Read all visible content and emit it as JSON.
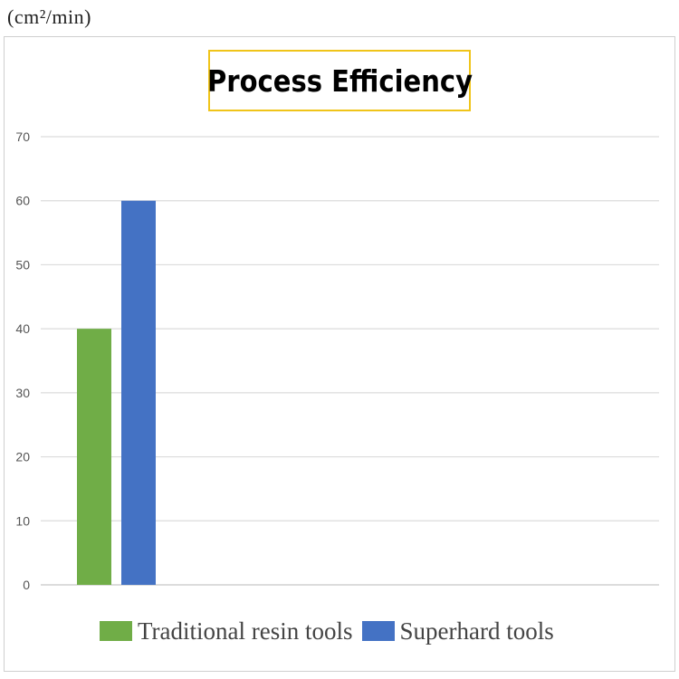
{
  "unit_label": "(cm²/min)",
  "chart_data": {
    "type": "bar",
    "title": "Process Efficiency",
    "xlabel": "",
    "ylabel": "(cm²/min)",
    "ylim": [
      0,
      70
    ],
    "yticks": [
      0,
      10,
      20,
      30,
      40,
      50,
      60,
      70
    ],
    "categories": [
      ""
    ],
    "series": [
      {
        "name": "Traditional resin tools",
        "values": [
          40
        ],
        "color": "#70ad47"
      },
      {
        "name": "Superhard tools",
        "values": [
          60
        ],
        "color": "#4472c4"
      }
    ],
    "grid": true,
    "legend_position": "bottom"
  }
}
